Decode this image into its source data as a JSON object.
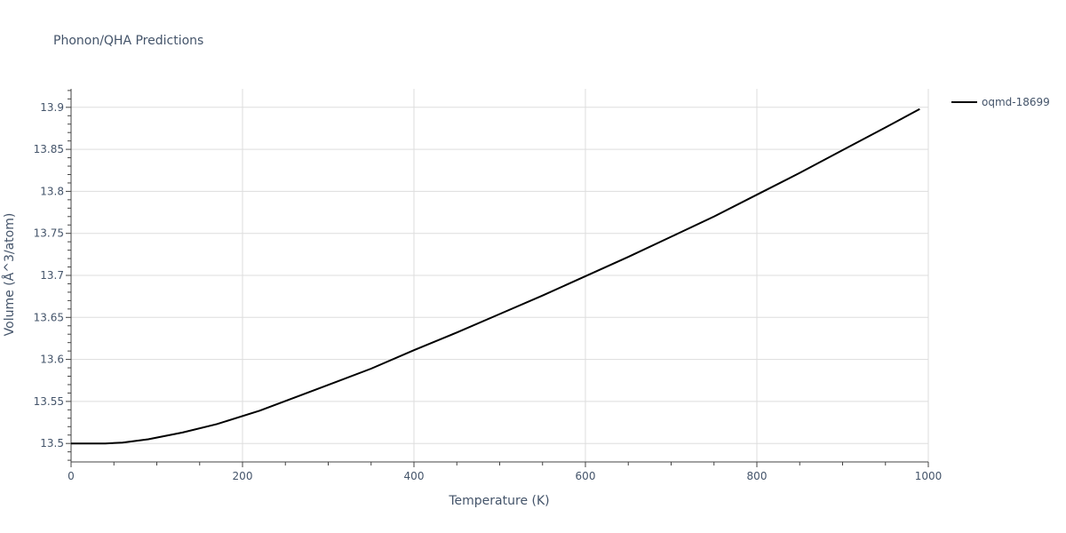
{
  "chart_data": {
    "type": "line",
    "title": "Phonon/QHA Predictions",
    "xlabel": "Temperature (K)",
    "ylabel": "Volume (Å^3/atom)",
    "xlim": [
      0,
      1000
    ],
    "ylim": [
      13.478,
      13.922
    ],
    "x_ticks": [
      0,
      200,
      400,
      600,
      800,
      1000
    ],
    "x_tick_labels": [
      "0",
      "200",
      "400",
      "600",
      "800",
      "1000"
    ],
    "y_ticks": [
      13.5,
      13.55,
      13.6,
      13.65,
      13.7,
      13.75,
      13.8,
      13.85,
      13.9
    ],
    "y_tick_labels": [
      "13.5",
      "13.55",
      "13.6",
      "13.65",
      "13.7",
      "13.75",
      "13.8",
      "13.85",
      "13.9"
    ],
    "grid": true,
    "legend_position": "top-right",
    "series": [
      {
        "name": "oqmd-18699",
        "color": "#000000",
        "x": [
          0,
          20,
          40,
          60,
          90,
          130,
          170,
          220,
          280,
          350,
          400,
          450,
          500,
          550,
          600,
          650,
          700,
          750,
          800,
          850,
          900,
          950,
          990
        ],
        "y": [
          13.5,
          13.5,
          13.5,
          13.501,
          13.505,
          13.513,
          13.523,
          13.539,
          13.562,
          13.589,
          13.611,
          13.632,
          13.654,
          13.676,
          13.699,
          13.722,
          13.746,
          13.77,
          13.796,
          13.822,
          13.849,
          13.876,
          13.898
        ]
      }
    ]
  }
}
